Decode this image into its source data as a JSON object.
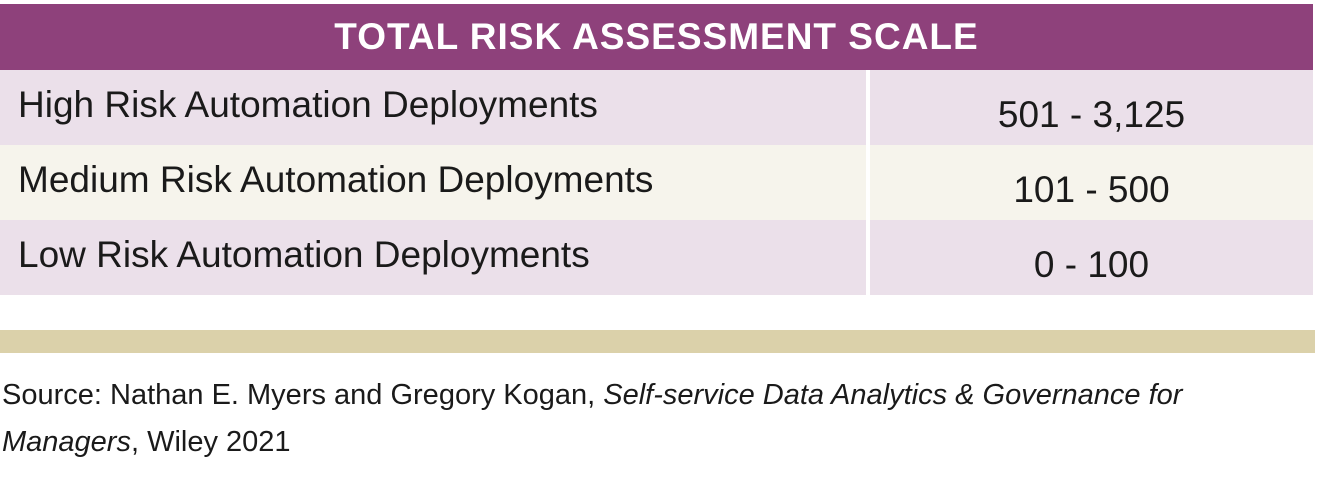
{
  "title": "TOTAL RISK ASSESSMENT SCALE",
  "rows": [
    {
      "label": "High Risk Automation Deployments",
      "range": "501 - 3,125"
    },
    {
      "label": "Medium Risk Automation Deployments",
      "range": "101 - 500"
    },
    {
      "label": "Low Risk Automation Deployments",
      "range": "0 - 100"
    }
  ],
  "source": {
    "prefix": "Source: Nathan E. Myers and Gregory Kogan, ",
    "book_title": "Self-service Data Analytics & Governance for Managers",
    "suffix": ", Wiley 2021"
  },
  "colors": {
    "header": "#8e417b",
    "row_odd": "#ebe0ea",
    "row_even": "#f6f4ec",
    "rule": "#dbd1aa"
  }
}
